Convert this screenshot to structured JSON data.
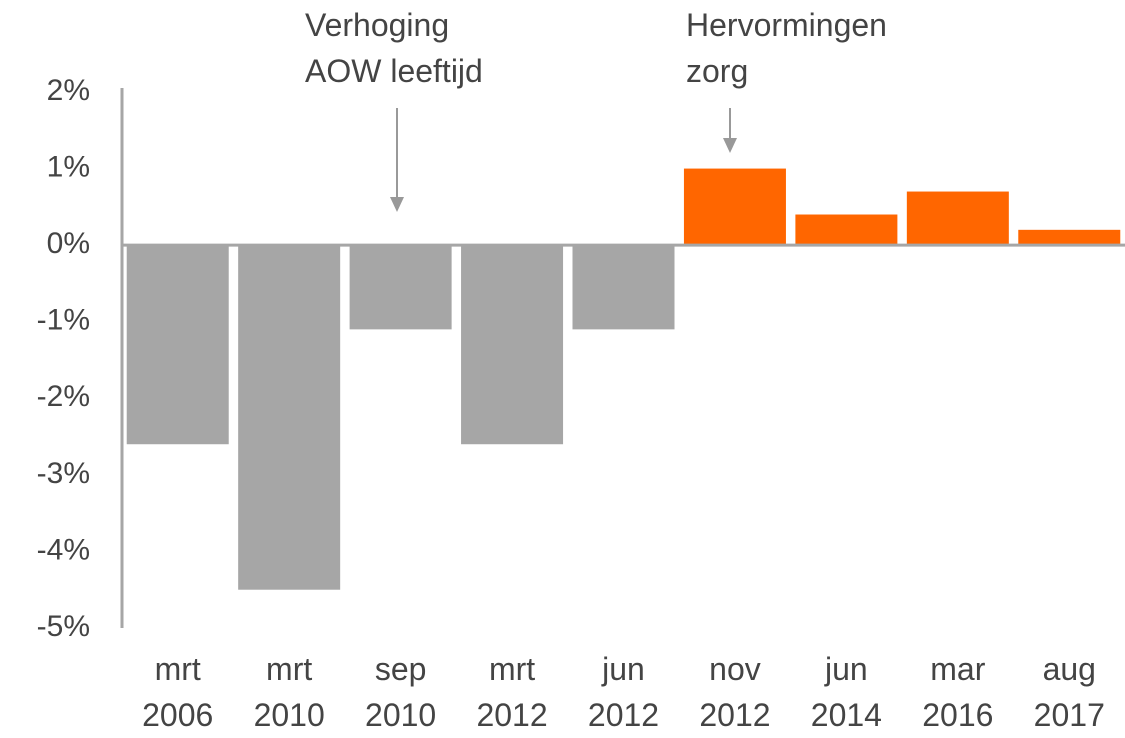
{
  "chart_data": {
    "type": "bar",
    "categories": [
      "mrt\n2006",
      "mrt\n2010",
      "sep\n2010",
      "mrt\n2012",
      "jun\n2012",
      "nov\n2012",
      "jun\n2014",
      "mar\n2016",
      "aug\n2017"
    ],
    "values": [
      -2.6,
      -4.5,
      -1.1,
      -2.6,
      -1.1,
      1.0,
      0.4,
      0.7,
      0.2
    ],
    "colors": [
      "#a6a6a6",
      "#a6a6a6",
      "#a6a6a6",
      "#a6a6a6",
      "#a6a6a6",
      "#ff6600",
      "#ff6600",
      "#ff6600",
      "#ff6600"
    ],
    "ylim": [
      -5,
      2
    ],
    "yticks": [
      {
        "value": 2,
        "label": "2%"
      },
      {
        "value": 1,
        "label": "1%"
      },
      {
        "value": 0,
        "label": "0%"
      },
      {
        "value": -1,
        "label": "-1%"
      },
      {
        "value": -2,
        "label": "-2%"
      },
      {
        "value": -3,
        "label": "-3%"
      },
      {
        "value": -4,
        "label": "-4%"
      },
      {
        "value": -5,
        "label": "-5%"
      }
    ],
    "annotations": [
      "Verhoging\nAOW leeftijd",
      "Hervormingen\nzorg"
    ]
  }
}
